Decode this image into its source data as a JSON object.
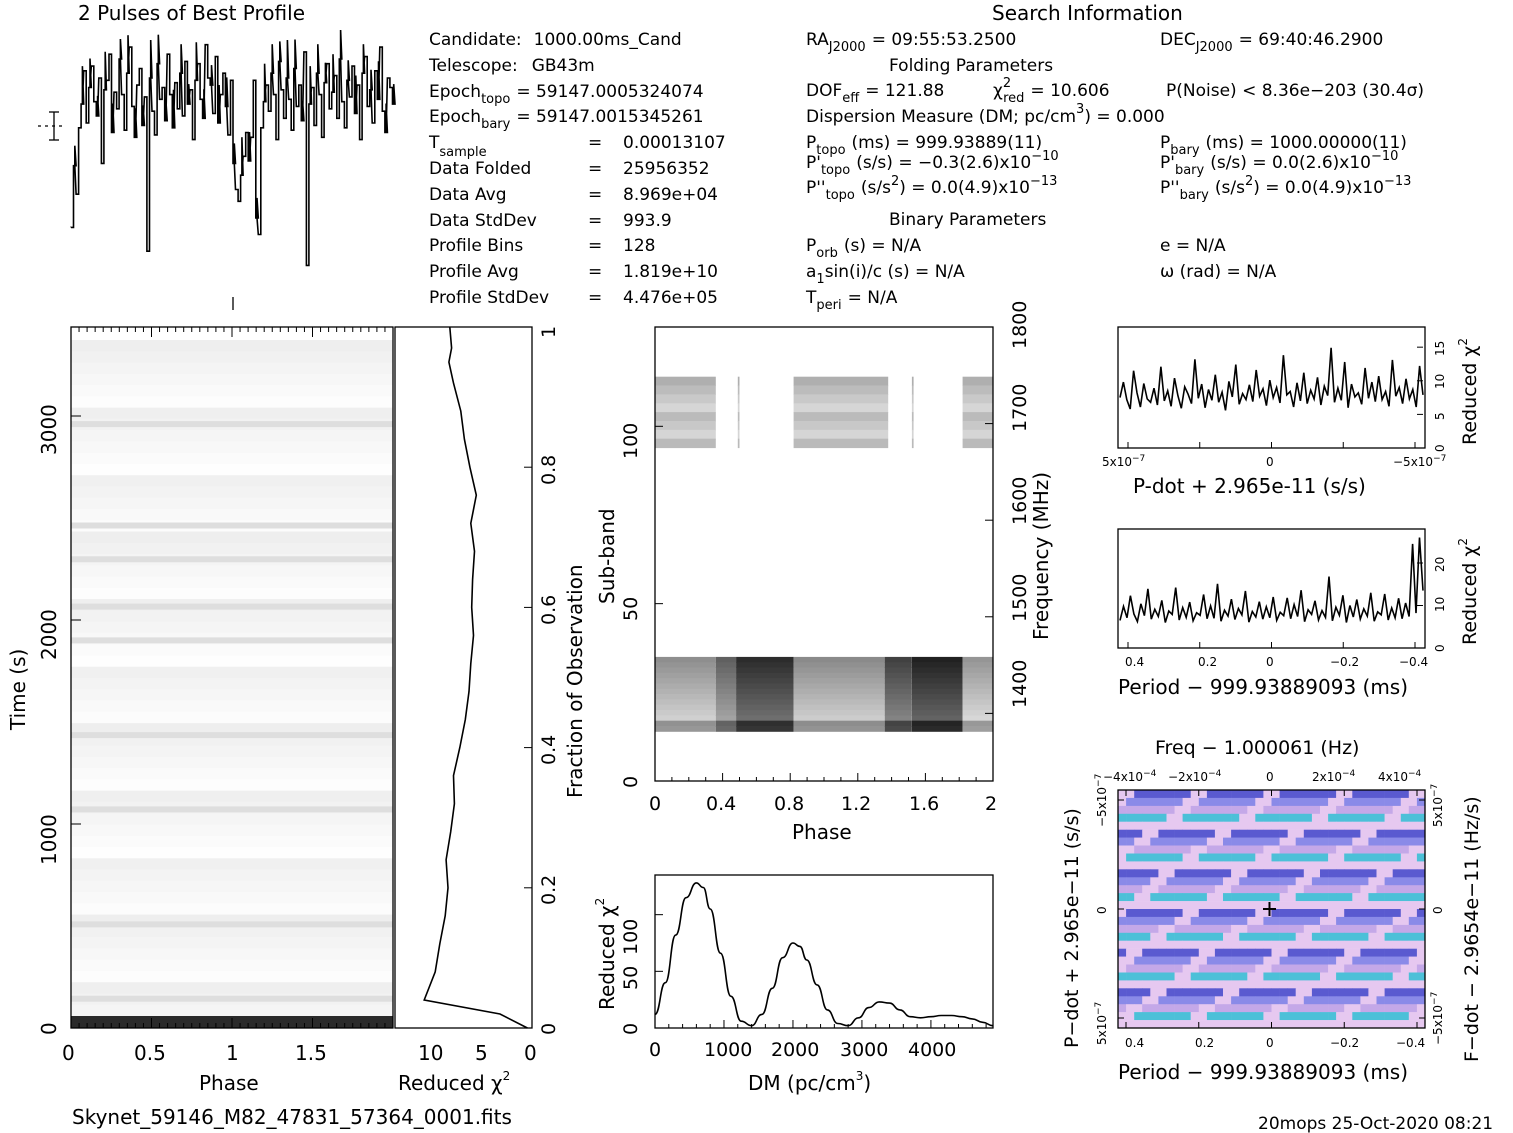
{
  "top_title": "2 Pulses of Best Profile",
  "search_title": "Search Information",
  "folding_title": "Folding Parameters",
  "binary_title": "Binary Parameters",
  "footer": {
    "filename": "Skynet_59146_M82_47831_57364_0001.fits",
    "stamp": "20mops 25-Oct-2020 08:21"
  },
  "info": {
    "candidate": {
      "label": "Candidate:",
      "value": "1000.00ms_Cand"
    },
    "telescope": {
      "label": "Telescope:",
      "value": "GB43m"
    },
    "epoch_topo": {
      "label": "Epoch",
      "sub": "topo",
      "value": "= 59147.0005324074"
    },
    "epoch_bary": {
      "label": "Epoch",
      "sub": "bary",
      "value": "= 59147.0015345261"
    },
    "t_sample": {
      "label": "T",
      "sub": "sample",
      "eq": "=",
      "value": "0.00013107"
    },
    "data_folded": {
      "label": "Data Folded",
      "eq": "=",
      "value": "25956352"
    },
    "data_avg": {
      "label": "Data Avg",
      "eq": "=",
      "value": "8.969e+04"
    },
    "data_stddev": {
      "label": "Data StdDev",
      "eq": "=",
      "value": "993.9"
    },
    "profile_bins": {
      "label": "Profile Bins",
      "eq": "=",
      "value": "128"
    },
    "profile_avg": {
      "label": "Profile Avg",
      "eq": "=",
      "value": "1.819e+10"
    },
    "profile_stddev": {
      "label": "Profile StdDev",
      "eq": "=",
      "value": "4.476e+05"
    }
  },
  "search": {
    "ra": {
      "label": "RA",
      "sub": "J2000",
      "value": "= 09:55:53.2500"
    },
    "dec": {
      "label": "DEC",
      "sub": "J2000",
      "value": "= 69:40:46.2900"
    },
    "dof": {
      "label": "DOF",
      "sub": "eff",
      "value": "= 121.88"
    },
    "chi_red": {
      "label": "χ",
      "sup": "2",
      "sub": "red",
      "value": "= 10.606"
    },
    "pnoise": "P(Noise) < 8.36e−203   (30.4σ)",
    "dm": {
      "text": "Dispersion Measure (DM; pc/cm",
      "sup": "3",
      "tail": ") = 0.000"
    },
    "p_topo": {
      "label": "P",
      "sub": "topo",
      "value": "(ms) =  999.93889(11)"
    },
    "p_bary": {
      "label": "P",
      "sub": "bary",
      "value": "(ms) =  1000.00000(11)"
    },
    "pd_topo": {
      "label": "P'",
      "sub": "topo",
      "value": "(s/s) = −0.3(2.6)x10",
      "exp": "−10"
    },
    "pd_bary": {
      "label": "P'",
      "sub": "bary",
      "value": "(s/s) = 0.0(2.6)x10",
      "exp": "−10"
    },
    "pdd_topo": {
      "label": "P''",
      "sub": "topo",
      "value": "(s/s",
      "exp": "2",
      "tail": ") = 0.0(4.9)x10",
      "exp2": "−13"
    },
    "pdd_bary": {
      "label": "P''",
      "sub": "bary",
      "value": "(s/s",
      "exp": "2",
      "tail": ") = 0.0(4.9)x10",
      "exp2": "−13"
    },
    "porb": {
      "label": "P",
      "sub": "orb",
      "value": "(s) = N/A"
    },
    "ecc": "e = N/A",
    "a1": {
      "label": "a",
      "sub": "1",
      "value": "sin(i)/c (s) = N/A"
    },
    "omega": "ω (rad) = N/A",
    "tperi": {
      "label": "T",
      "sub": "peri",
      "value": "= N/A"
    }
  },
  "chart_data": [
    {
      "id": "pulse-profile",
      "type": "line",
      "title": "2 Pulses of Best Profile",
      "x_range": [
        0,
        2
      ],
      "y_range": [
        -0.55,
        0.47
      ],
      "y_units": "profile minus average, scaled",
      "values": [
        -0.32,
        -0.06,
        -0.18,
        0.1,
        0.2,
        0.34,
        0.12,
        0.27,
        0.36,
        0.21,
        0.15,
        0.31,
        -0.05,
        0.26,
        0.3,
        0.41,
        0.08,
        0.25,
        0.18,
        0.39,
        0.24,
        0.09,
        0.33,
        0.44,
        0.19,
        0.06,
        0.28,
        0.35,
        0.11,
        0.23,
        -0.42,
        0.31,
        0.17,
        0.07,
        0.37,
        0.22,
        0.27,
        0.13,
        0.41,
        0.24,
        0.1,
        0.29,
        0.18,
        0.33,
        0.15,
        0.38,
        0.2,
        0.26,
        0.05,
        0.3,
        0.37,
        0.22,
        0.14,
        0.45,
        0.31,
        0.28,
        0.16,
        0.4,
        0.12,
        0.24,
        0.33,
        0.19,
        0.07,
        0.3,
        -0.05,
        -0.16,
        -0.21,
        -0.1,
        -0.02,
        0.08,
        -0.04,
        0.06,
        0.3,
        -0.28,
        -0.35,
        0.1,
        0.21,
        0.28,
        0.17,
        0.33,
        0.24,
        0.05,
        0.38,
        0.26,
        0.14,
        0.31,
        0.22,
        0.09,
        0.35,
        0.19,
        0.28,
        0.13,
        0.42,
        -0.48,
        0.2,
        0.27,
        0.11,
        0.33,
        0.24,
        0.06,
        0.29,
        0.37,
        0.18,
        0.25,
        0.32,
        0.14,
        0.39,
        0.21,
        0.1,
        0.3,
        0.23,
        0.36,
        0.16,
        0.28,
        0.05,
        0.33,
        0.4,
        0.19,
        0.26,
        0.12,
        0.34,
        0.22,
        0.44,
        0.17,
        0.08,
        0.31,
        0.27,
        0.2
      ]
    },
    {
      "id": "time-phase",
      "type": "heatmap",
      "xlabel": "Phase",
      "ylabel": "Time (s)",
      "x_ticks": [
        "0",
        "0.5",
        "1",
        "1.5"
      ],
      "y_ticks": [
        "0",
        "1000",
        "2000",
        "3000"
      ],
      "x_range": [
        0,
        2
      ],
      "y_range": [
        0,
        3400
      ],
      "bright_rows_fraction": [
        0.03,
        0.14,
        0.31,
        0.42,
        0.56,
        0.61,
        0.68,
        0.73,
        0.88
      ]
    },
    {
      "id": "reduced-chi2-vs-time",
      "type": "line",
      "xlabel": "Reduced χ2",
      "ylabel": "Fraction of Observation",
      "x_ticks": [
        "10",
        "5",
        "0"
      ],
      "y_ticks": [
        "0",
        "0.2",
        "0.4",
        "0.6",
        "0.8",
        "1"
      ],
      "x_range": [
        15,
        0
      ],
      "fraction": [
        0.0,
        0.02,
        0.04,
        0.08,
        0.12,
        0.16,
        0.2,
        0.24,
        0.28,
        0.32,
        0.36,
        0.4,
        0.44,
        0.48,
        0.52,
        0.56,
        0.6,
        0.64,
        0.68,
        0.72,
        0.76,
        0.8,
        0.84,
        0.88,
        0.92,
        0.95,
        0.97,
        1.0
      ],
      "chi2": [
        0.5,
        3.5,
        11.8,
        10.6,
        10.1,
        9.5,
        9.2,
        9.4,
        8.9,
        8.5,
        8.6,
        7.9,
        7.3,
        6.9,
        6.7,
        6.4,
        6.6,
        6.5,
        6.3,
        6.7,
        6.1,
        6.8,
        7.4,
        7.8,
        8.6,
        9.1,
        8.8,
        9.0
      ]
    },
    {
      "id": "subband-phase",
      "type": "heatmap",
      "xlabel": "Phase",
      "ylabel": "Sub-band",
      "ylabel2": "Frequency (MHz)",
      "x_ticks": [
        "0",
        "0.4",
        "0.8",
        "1.2",
        "1.6",
        "2"
      ],
      "y_ticks": [
        "0",
        "50",
        "100"
      ],
      "y2_ticks": [
        "1400",
        "1500",
        "1600",
        "1700",
        "1800"
      ],
      "x_range": [
        0,
        2
      ],
      "y_range": [
        0,
        128
      ],
      "y2_range": [
        1330,
        1800
      ],
      "bands": [
        {
          "from": 94,
          "to": 114,
          "shade": "light"
        },
        {
          "from": 14,
          "to": 35,
          "shade": "dark"
        }
      ]
    },
    {
      "id": "dm-curve",
      "type": "line",
      "xlabel": "DM (pc/cm3)",
      "ylabel": "Reduced χ2",
      "x_ticks": [
        "0",
        "1000",
        "2000",
        "3000",
        "4000"
      ],
      "y_ticks": [
        "0",
        "50",
        "100"
      ],
      "x_range": [
        0,
        4900
      ],
      "y_range": [
        0,
        135
      ],
      "x": [
        0,
        150,
        300,
        450,
        600,
        700,
        800,
        950,
        1100,
        1250,
        1400,
        1550,
        1700,
        1850,
        2000,
        2100,
        2200,
        2350,
        2500,
        2650,
        2800,
        2950,
        3100,
        3250,
        3400,
        3550,
        3700,
        3850,
        4000,
        4150,
        4300,
        4450,
        4600,
        4750,
        4900
      ],
      "y": [
        12,
        40,
        82,
        115,
        128,
        124,
        105,
        66,
        28,
        6,
        2,
        12,
        35,
        62,
        75,
        72,
        60,
        38,
        16,
        4,
        2,
        9,
        18,
        23,
        22,
        16,
        10,
        9,
        10,
        11,
        11,
        10,
        8,
        5,
        2
      ]
    },
    {
      "id": "pdot-curve",
      "type": "line",
      "xlabel": "P-dot + 2.965e-11 (s/s)",
      "ylabel": "Reduced χ2",
      "x_ticks": [
        "5x10-7",
        "0",
        "-5x10-7"
      ],
      "y_ticks": [
        "0",
        "5",
        "10",
        "15"
      ],
      "y_range": [
        0,
        18
      ],
      "values": [
        7.5,
        9.8,
        7.2,
        5.8,
        11.5,
        8.2,
        6.1,
        9.6,
        7.3,
        6.8,
        8.9,
        6.4,
        12.1,
        7.0,
        8.5,
        6.2,
        10.4,
        7.8,
        5.9,
        9.1,
        8.0,
        6.6,
        13.2,
        7.4,
        9.5,
        6.0,
        8.7,
        7.1,
        10.9,
        6.8,
        8.3,
        5.6,
        9.9,
        7.6,
        12.4,
        6.5,
        8.1,
        7.2,
        9.4,
        6.9,
        11.6,
        7.7,
        8.8,
        6.3,
        10.1,
        7.5,
        9.0,
        6.7,
        13.8,
        7.9,
        8.4,
        6.1,
        9.7,
        7.0,
        11.2,
        6.6,
        8.6,
        7.3,
        10.5,
        6.4,
        9.2,
        7.8,
        14.9,
        6.8,
        8.9,
        7.1,
        12.8,
        6.0,
        9.5,
        7.6,
        8.2,
        6.5,
        11.9,
        7.4,
        9.8,
        6.9,
        10.7,
        7.2,
        8.4,
        6.2,
        13.1,
        7.7,
        9.0,
        6.6,
        10.3,
        7.3,
        8.7,
        6.1,
        12.2,
        7.9
      ]
    },
    {
      "id": "period-curve",
      "type": "line",
      "xlabel": "Period − 999.93889093 (ms)",
      "ylabel": "Reduced χ2",
      "x_ticks": [
        "0.4",
        "0.2",
        "0",
        "−0.2",
        "−0.4"
      ],
      "y_ticks": [
        "0",
        "10",
        "20"
      ],
      "y_range": [
        0,
        28
      ],
      "values": [
        6.5,
        9.8,
        7.1,
        12.3,
        8.0,
        6.2,
        10.4,
        7.6,
        13.9,
        6.8,
        9.1,
        7.4,
        11.2,
        6.0,
        8.7,
        7.9,
        14.2,
        6.6,
        9.5,
        7.2,
        10.8,
        6.4,
        8.3,
        7.7,
        12.6,
        6.9,
        9.9,
        7.0,
        15.1,
        6.3,
        8.9,
        7.5,
        11.5,
        6.7,
        9.3,
        7.8,
        13.4,
        6.1,
        8.6,
        7.3,
        10.9,
        6.8,
        9.7,
        7.1,
        12.0,
        6.5,
        8.4,
        7.6,
        11.8,
        6.9,
        10.2,
        7.4,
        13.6,
        6.2,
        9.0,
        7.9,
        11.1,
        6.6,
        8.8,
        7.2,
        16.8,
        6.4,
        9.6,
        7.7,
        12.4,
        6.0,
        10.0,
        7.3,
        11.4,
        6.8,
        9.2,
        7.5,
        13.0,
        6.3,
        8.5,
        7.8,
        12.7,
        6.6,
        9.4,
        7.1,
        11.7,
        6.9,
        10.6,
        7.4,
        24.5,
        8.2,
        26.0,
        13.5
      ]
    },
    {
      "id": "period-pdot-plane",
      "type": "heatmap",
      "title": "Freq − 1.000061 (Hz)",
      "xlabel": "Period − 999.93889093 (ms)",
      "ylabel": "P−dot + 2.965e−11 (s/s)",
      "ylabel2": "F−dot − 2.9654e−11 (Hz/s)",
      "x_ticks": [
        "0.4",
        "0.2",
        "0",
        "−0.2",
        "−0.4"
      ],
      "x2_ticks": [
        "−4x10-4",
        "−2x10-4",
        "0",
        "2x10-4",
        "4x10-4"
      ],
      "y_ticks": [
        "5x10-7",
        "0",
        "−5x10-7"
      ],
      "y2_ticks": [
        "−5x10-7",
        "0",
        "5x10-7"
      ],
      "colors": [
        "#5a5ad0",
        "#8a8ae8",
        "#c4a8e8",
        "#4cc0d8",
        "#e6c8f0"
      ],
      "marker": "cross"
    }
  ]
}
